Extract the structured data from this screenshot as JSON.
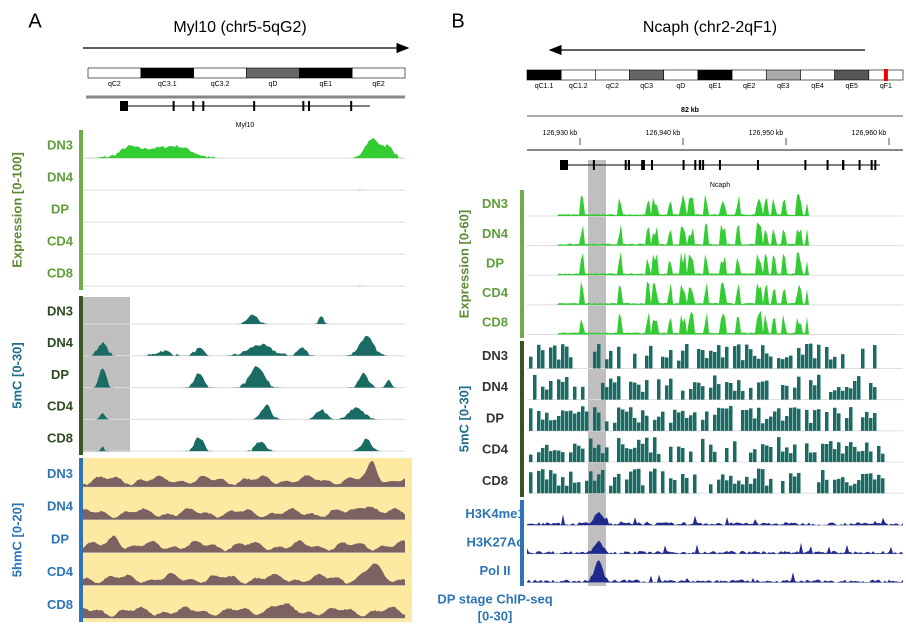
{
  "panels": [
    {
      "letter": "A",
      "title": "Myl10 (chr5-5qG2)",
      "bands": [
        "qC2",
        "qC3.1",
        "qC3.2",
        "qD",
        "qE1",
        "qE2"
      ],
      "gene": "Myl10",
      "groups": [
        {
          "label": "Expression [0-100]",
          "tracks": [
            "DN3",
            "DN4",
            "DP",
            "CD4",
            "CD8"
          ]
        },
        {
          "label": "5mC [0-30]",
          "tracks": [
            "DN3",
            "DN4",
            "DP",
            "CD4",
            "CD8"
          ]
        },
        {
          "label": "5hmC [0-20]",
          "tracks": [
            "DN3",
            "DN4",
            "DP",
            "CD4",
            "CD8"
          ]
        }
      ]
    },
    {
      "letter": "B",
      "title": "Ncaph (chr2-2qF1)",
      "bands": [
        "qC1.1",
        "qC1.2",
        "qC2",
        "qC3",
        "qD",
        "qE1",
        "qE2",
        "qE3",
        "qE4",
        "qE5",
        "qF1"
      ],
      "scale": "82 kb",
      "coords": [
        "126,930 kb",
        "126,940 kb",
        "126,950 kb",
        "126,960 kb"
      ],
      "gene": "Ncaph",
      "groups": [
        {
          "label": "Expression [0-60]",
          "tracks": [
            "DN3",
            "DN4",
            "DP",
            "CD4",
            "CD8"
          ]
        },
        {
          "label": "5mC [0-30]",
          "tracks": [
            "DN3",
            "DN4",
            "DP",
            "CD4",
            "CD8"
          ]
        },
        {
          "label_lines": [
            "DP stage ChIP-seq",
            "[0-30]"
          ],
          "tracks": [
            "H3K4me1",
            "H3K27Ac",
            "Pol II"
          ]
        }
      ]
    }
  ]
}
